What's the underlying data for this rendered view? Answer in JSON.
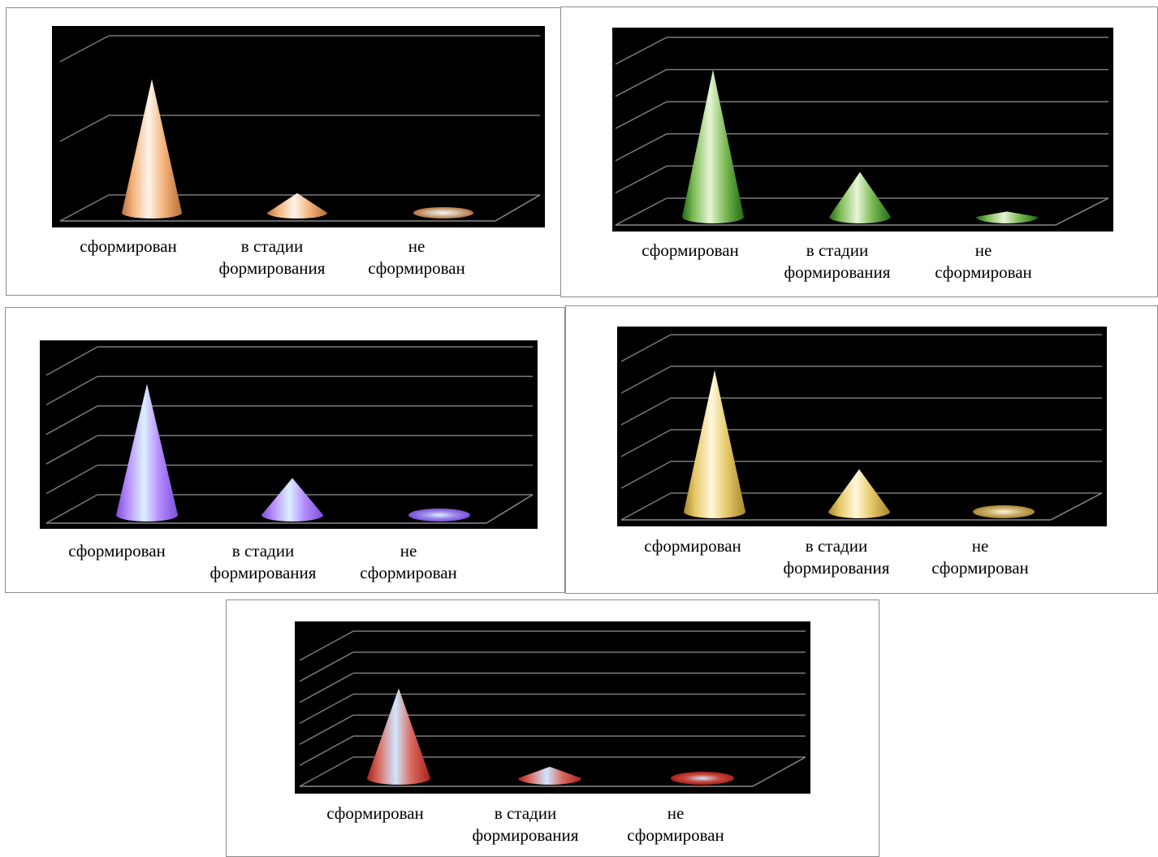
{
  "chart_data": [
    {
      "type": "bar",
      "categories": [
        "сформирован",
        "в стадии\nформирования",
        "не\nсформирован"
      ],
      "series": [
        {
          "values": [
            68,
            10,
            2
          ]
        }
      ],
      "ylim": [
        0,
        90
      ],
      "gridlines": 2,
      "grid": true,
      "colors": {
        "dark": "#b8703c",
        "mid": "#f3b27a",
        "light": "#fff4ec",
        "floor": "#c9b89a"
      }
    },
    {
      "type": "bar",
      "categories": [
        "сформирован",
        "в стадии\nформирования",
        "не\nсформирован"
      ],
      "series": [
        {
          "values": [
            82,
            25,
            3
          ]
        }
      ],
      "ylim": [
        0,
        100
      ],
      "gridlines": 5,
      "grid": true,
      "colors": {
        "dark": "#1f6b12",
        "mid": "#7dba55",
        "light": "#e6f6d6",
        "floor": "#6aa84f"
      }
    },
    {
      "type": "bar",
      "categories": [
        "сформирован",
        "в стадии\nформирования",
        "не\nсформирован"
      ],
      "series": [
        {
          "values": [
            78,
            22,
            2
          ]
        }
      ],
      "ylim": [
        0,
        100
      ],
      "gridlines": 5,
      "grid": true,
      "colors": {
        "dark": "#7b4fd6",
        "mid": "#b58bff",
        "light": "#dcf0ff",
        "floor": "#9a86e6"
      }
    },
    {
      "type": "bar",
      "categories": [
        "сформирован",
        "в стадии\nформирования",
        "не\nсформирован"
      ],
      "series": [
        {
          "values": [
            80,
            24,
            2
          ]
        }
      ],
      "ylim": [
        0,
        100
      ],
      "gridlines": 5,
      "grid": true,
      "colors": {
        "dark": "#a8862a",
        "mid": "#e6c868",
        "light": "#fff8dc",
        "floor": "#c8b070"
      }
    },
    {
      "type": "bar",
      "categories": [
        "сформирован",
        "в стадии\nформирования",
        "не\nсформирован"
      ],
      "series": [
        {
          "values": [
            55,
            7,
            2
          ]
        }
      ],
      "ylim": [
        0,
        90
      ],
      "gridlines": 6,
      "grid": true,
      "colors": {
        "dark": "#a8201a",
        "mid": "#d86a5e",
        "light": "#cfe6ff",
        "floor": "#c84a40"
      }
    }
  ]
}
